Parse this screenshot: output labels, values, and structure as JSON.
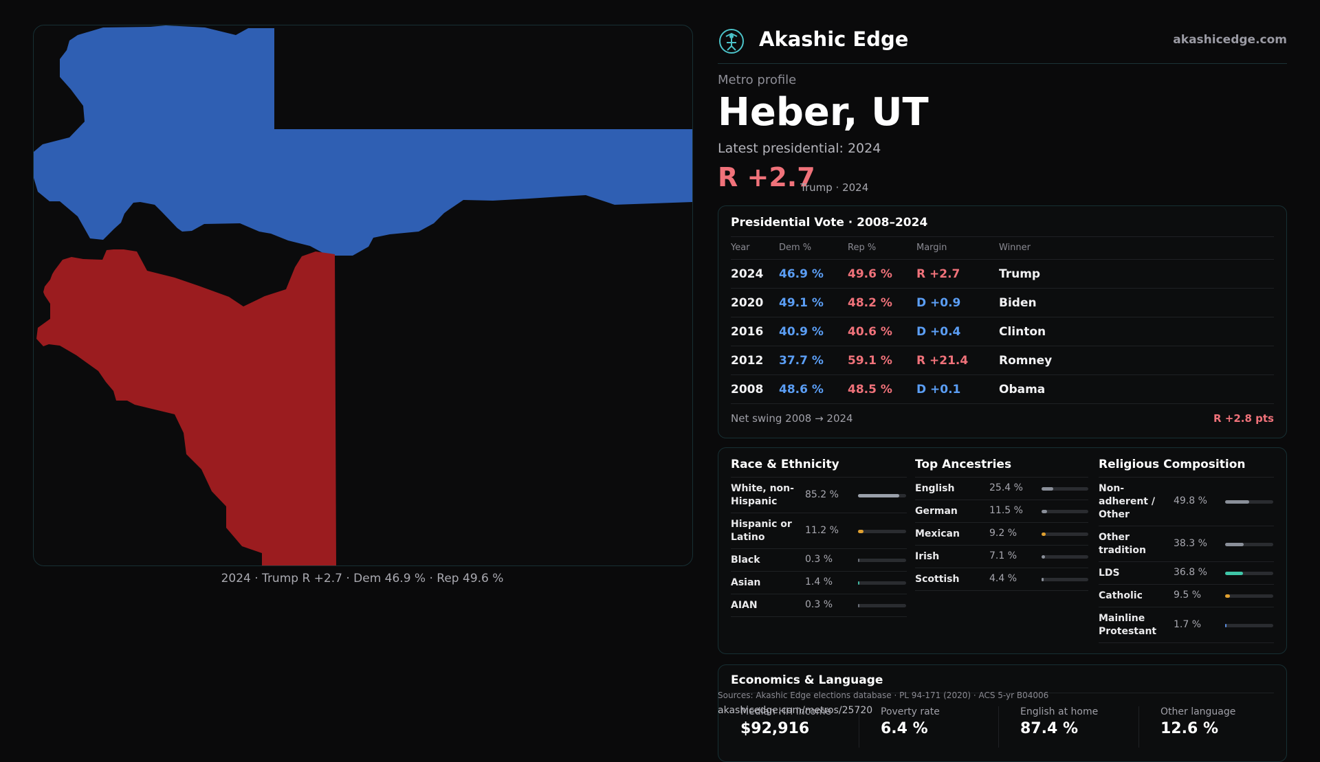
{
  "map": {
    "caption": "2024 · Trump R +2.7 · Dem 46.9 % · Rep 49.6 %",
    "regions": [
      {
        "name": "north-county",
        "party": "D",
        "color": "#2f5fb3"
      },
      {
        "name": "south-county",
        "party": "R",
        "color": "#9b1c1f"
      }
    ]
  },
  "brand": {
    "name": "Akashic Edge",
    "site": "akashicedge.com",
    "accent": "#4cc3c9"
  },
  "profile": {
    "eyebrow": "Metro profile",
    "title": "Heber, UT",
    "latest_label": "Latest presidential: 2024",
    "margin": "R +2.7",
    "margin_sub": "Trump · 2024"
  },
  "vote": {
    "title": "Presidential Vote · 2008–2024",
    "headers": {
      "year": "Year",
      "dem": "Dem %",
      "rep": "Rep %",
      "margin": "Margin",
      "winner": "Winner"
    },
    "rows": [
      {
        "year": "2024",
        "dem": "46.9 %",
        "rep": "49.6 %",
        "margin": "R +2.7",
        "party": "R",
        "winner": "Trump"
      },
      {
        "year": "2020",
        "dem": "49.1 %",
        "rep": "48.2 %",
        "margin": "D +0.9",
        "party": "D",
        "winner": "Biden"
      },
      {
        "year": "2016",
        "dem": "40.9 %",
        "rep": "40.6 %",
        "margin": "D +0.4",
        "party": "D",
        "winner": "Clinton"
      },
      {
        "year": "2012",
        "dem": "37.7 %",
        "rep": "59.1 %",
        "margin": "R +21.4",
        "party": "R",
        "winner": "Romney"
      },
      {
        "year": "2008",
        "dem": "48.6 %",
        "rep": "48.5 %",
        "margin": "D +0.1",
        "party": "D",
        "winner": "Obama"
      }
    ],
    "swing_label": "Net swing 2008 → 2024",
    "swing_value": "R +2.8 pts"
  },
  "race": {
    "title": "Race & Ethnicity",
    "items": [
      {
        "label": "White, non-\nHispanic",
        "pct": "85.2 %",
        "value": 0.852,
        "color": "#9aa0aa"
      },
      {
        "label": "Hispanic or\nLatino",
        "pct": "11.2 %",
        "value": 0.112,
        "color": "#e0a030"
      },
      {
        "label": "Black",
        "pct": "0.3 %",
        "value": 0.003,
        "color": "#6b6f78"
      },
      {
        "label": "Asian",
        "pct": "1.4 %",
        "value": 0.014,
        "color": "#3fb6a0"
      },
      {
        "label": "AIAN",
        "pct": "0.3 %",
        "value": 0.003,
        "color": "#6b6f78"
      }
    ]
  },
  "ancestry": {
    "title": "Top Ancestries",
    "items": [
      {
        "label": "English",
        "pct": "25.4 %",
        "value": 0.254,
        "color": "#8a8f99"
      },
      {
        "label": "German",
        "pct": "11.5 %",
        "value": 0.115,
        "color": "#8a8f99"
      },
      {
        "label": "Mexican",
        "pct": "9.2 %",
        "value": 0.092,
        "color": "#e0a030"
      },
      {
        "label": "Irish",
        "pct": "7.1 %",
        "value": 0.071,
        "color": "#8a8f99"
      },
      {
        "label": "Scottish",
        "pct": "4.4 %",
        "value": 0.044,
        "color": "#8a8f99"
      }
    ]
  },
  "religion": {
    "title": "Religious Composition",
    "items": [
      {
        "label": "Non-\nadherent /\nOther",
        "pct": "49.8 %",
        "value": 0.498,
        "color": "#8a8f99"
      },
      {
        "label": "Other\ntradition",
        "pct": "38.3 %",
        "value": 0.383,
        "color": "#8a8f99"
      },
      {
        "label": "LDS",
        "pct": "36.8 %",
        "value": 0.368,
        "color": "#3fc6a8"
      },
      {
        "label": "Catholic",
        "pct": "9.5 %",
        "value": 0.095,
        "color": "#e0a030"
      },
      {
        "label": "Mainline\nProtestant",
        "pct": "1.7 %",
        "value": 0.017,
        "color": "#5b8de0"
      }
    ]
  },
  "economics": {
    "title": "Economics & Language",
    "stats": [
      {
        "label": "Median HH income",
        "value": "$92,916"
      },
      {
        "label": "Poverty rate",
        "value": "6.4 %"
      },
      {
        "label": "English at home",
        "value": "87.4 %"
      },
      {
        "label": "Other language",
        "value": "12.6 %"
      }
    ]
  },
  "footer": {
    "sources": "Sources: Akashic Edge elections database · PL 94-171 (2020) · ACS 5-yr B04006",
    "url": "akashicedge.com/metros/25720"
  }
}
